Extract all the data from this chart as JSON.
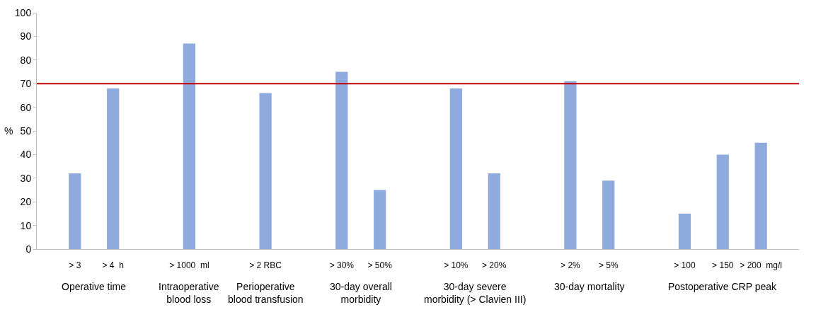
{
  "chart_data": {
    "type": "bar",
    "ylabel": "%",
    "categories": [
      "> 3",
      "> 4  h",
      null,
      "> 1000  ml",
      null,
      "> 2 RBC",
      null,
      "> 30%",
      "> 50%",
      null,
      "> 10%",
      "> 20%",
      null,
      "> 2%",
      "> 5%",
      null,
      "> 100",
      "> 150",
      "> 200  mg/l"
    ],
    "series": [
      {
        "color": "#8faadc",
        "values": [
          32,
          68,
          null,
          87,
          null,
          66,
          null,
          75,
          25,
          null,
          68,
          32,
          null,
          71,
          29,
          null,
          15,
          40,
          45
        ]
      }
    ],
    "ylim": [
      0,
      100
    ],
    "yticks": [
      0,
      10,
      20,
      30,
      40,
      50,
      60,
      70,
      80,
      90,
      100
    ],
    "grid": false,
    "ref_lines": [
      {
        "axis": "y",
        "value": 70,
        "color": "#c00000",
        "line_style": "solid"
      }
    ],
    "annotations": [
      "Operative time",
      "Intraoperative\nblood loss",
      "Perioperative\nblood transfusion",
      "30-day overall\nmorbidity",
      "30-day severe\nmorbidity (> Clavien III)",
      "30-day mortality",
      "Postoperative CRP peak"
    ]
  }
}
